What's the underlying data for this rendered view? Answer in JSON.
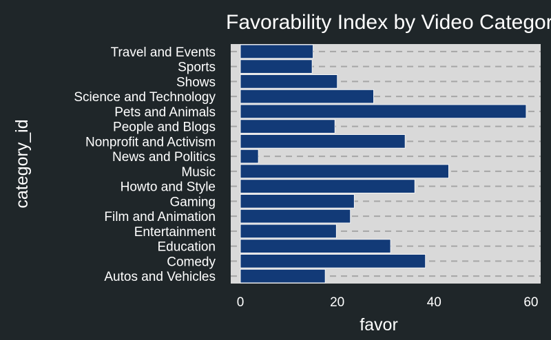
{
  "chart_data": {
    "type": "bar",
    "orientation": "horizontal",
    "title": "Favorability Index by Video Category",
    "xlabel": "favor",
    "ylabel": "category_id",
    "categories": [
      "Travel and Events",
      "Sports",
      "Shows",
      "Science and Technology",
      "Pets and Animals",
      "People and Blogs",
      "Nonprofit and Activism",
      "News and Politics",
      "Music",
      "Howto and Style",
      "Gaming",
      "Film and Animation",
      "Entertainment",
      "Education",
      "Comedy",
      "Autos and Vehicles"
    ],
    "values": [
      15.0,
      14.8,
      20.0,
      27.5,
      59.0,
      19.5,
      34.0,
      3.7,
      43.0,
      36.0,
      23.5,
      22.7,
      19.8,
      31.0,
      38.2,
      17.5
    ],
    "xlim": [
      -2,
      62
    ],
    "xticks": [
      0,
      20,
      40,
      60
    ],
    "grid": "dashed horizontal",
    "legend": "none",
    "colors": {
      "background": "#1f2629",
      "panel": "#d9d9d9",
      "bar": "#123a77",
      "bar_outline": "#ffffff",
      "grid": "#a6a6a6",
      "text": "#ffffff"
    }
  }
}
